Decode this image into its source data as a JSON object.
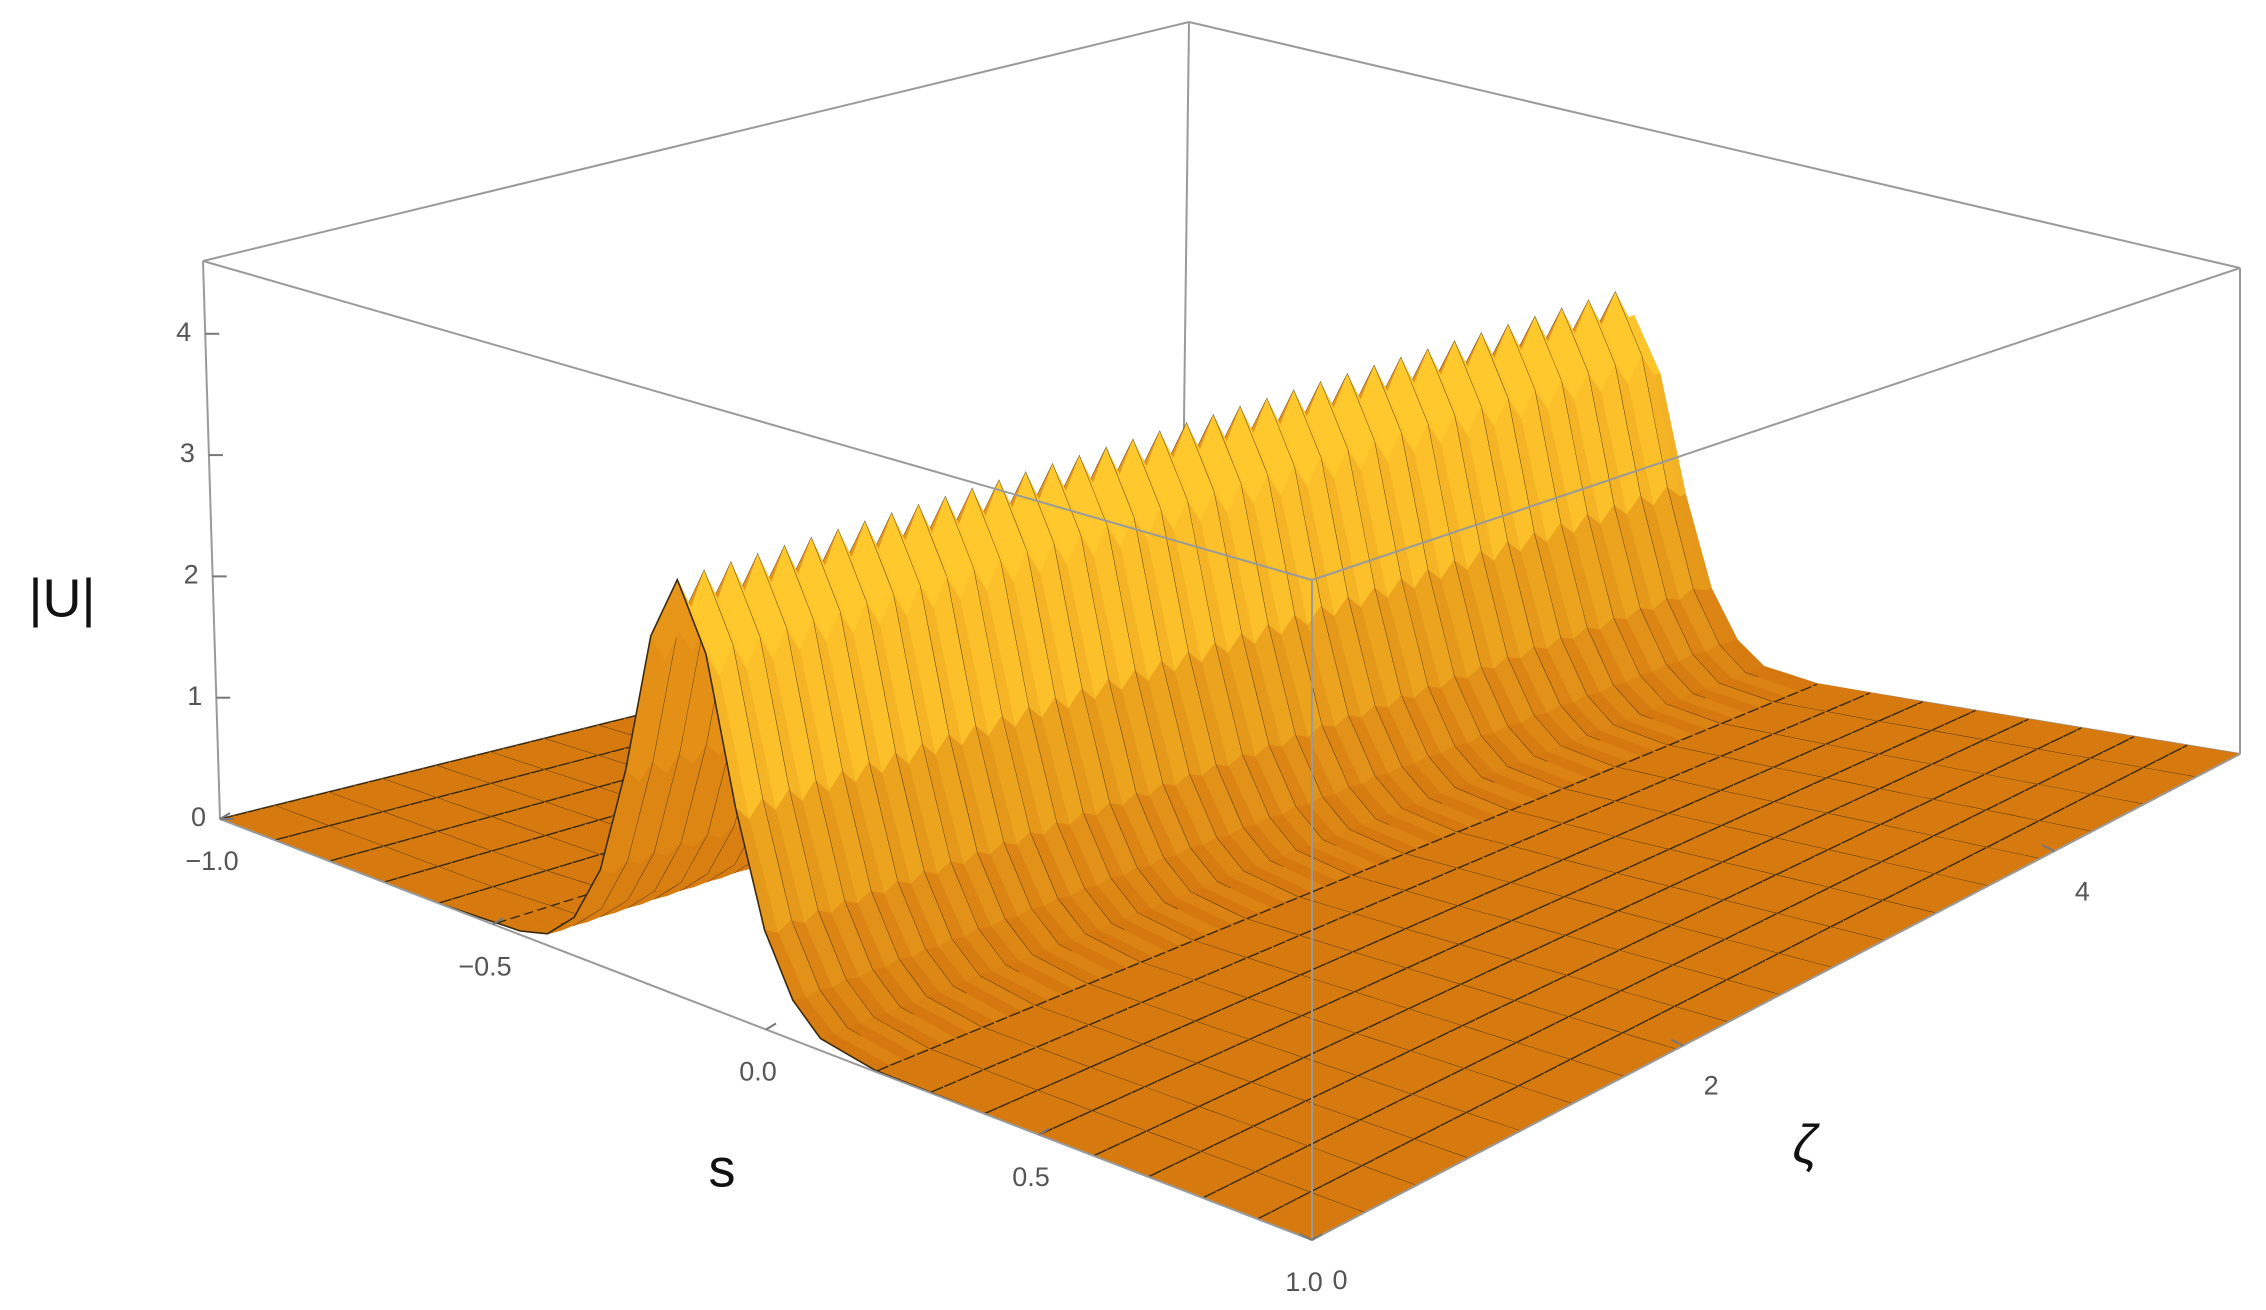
{
  "chart_data": {
    "type": "surface",
    "xlabel": "s",
    "ylabel": "ζ",
    "zlabel": "|U|",
    "xlim": [
      -1,
      1
    ],
    "ylim": [
      0,
      5
    ],
    "zlim": [
      0,
      4.6
    ],
    "xticks": [
      {
        "value": -1,
        "label": "−1.0"
      },
      {
        "value": -0.5,
        "label": "−0.5"
      },
      {
        "value": 0,
        "label": "0.0"
      },
      0.5,
      {
        "value": 1,
        "label": "1.0"
      }
    ],
    "yticks": [
      0,
      2,
      4
    ],
    "zticks": [
      0,
      1,
      2,
      3,
      4
    ],
    "profile": {
      "s": [
        -1,
        -0.6,
        -0.45,
        -0.4,
        -0.35,
        -0.3,
        -0.25,
        -0.2,
        -0.15,
        -0.1,
        -0.05,
        0,
        0.05,
        0.1,
        0.2,
        0.4,
        1
      ],
      "values": [
        0,
        0,
        0.03,
        0.09,
        0.3,
        0.75,
        1.6,
        2.7,
        3.2,
        2.7,
        1.6,
        0.75,
        0.3,
        0.09,
        0.01,
        0,
        0
      ]
    },
    "ridge": {
      "zeta": [
        0,
        0.07,
        0.14,
        0.21,
        0.28,
        0.35,
        0.42,
        0.49,
        0.56,
        0.63,
        0.7,
        0.77,
        0.84,
        0.91,
        0.98,
        1.05,
        1.12,
        1.19,
        1.26,
        1.33,
        1.4,
        1.47,
        1.54,
        1.61,
        1.68,
        1.75,
        1.82,
        1.89,
        1.96,
        2.03,
        2.1,
        2.17,
        2.24,
        2.31,
        2.38,
        2.45,
        2.52,
        2.59,
        2.66,
        2.73,
        2.8,
        2.87,
        2.94,
        3.01,
        3.08,
        3.15,
        3.22,
        3.29,
        3.36,
        3.43,
        3.5,
        3.57,
        3.64,
        3.71,
        3.78,
        3.85,
        3.92,
        3.99,
        4.06,
        4.13,
        4.2,
        4.27,
        4.34,
        4.41,
        4.48,
        4.55,
        4.62,
        4.69,
        4.76,
        4.83,
        4.9,
        4.97
      ],
      "peak": [
        3.2,
        2.95,
        3.2,
        2.95,
        3.2,
        2.95,
        3.2,
        2.95,
        3.2,
        2.95,
        3.2,
        2.95,
        3.2,
        2.95,
        3.2,
        2.95,
        3.2,
        2.95,
        3.2,
        2.95,
        3.2,
        2.95,
        3.2,
        2.95,
        3.2,
        2.95,
        3.2,
        2.95,
        3.2,
        2.95,
        3.2,
        2.95,
        3.2,
        2.95,
        3.2,
        2.95,
        3.2,
        2.95,
        3.2,
        2.95,
        3.2,
        2.95,
        3.2,
        2.95,
        3.2,
        2.95,
        3.2,
        2.95,
        3.2,
        2.95,
        3.2,
        2.95,
        3.2,
        2.95,
        3.2,
        2.95,
        3.2,
        2.95,
        3.2,
        2.95,
        3.2,
        2.95,
        3.2,
        2.95,
        3.2,
        2.95,
        3.2,
        2.95,
        3.2,
        2.95,
        3.2,
        2.95
      ]
    },
    "color": "#d67a10",
    "ridge_color": "#ffc428",
    "mesh": true
  }
}
